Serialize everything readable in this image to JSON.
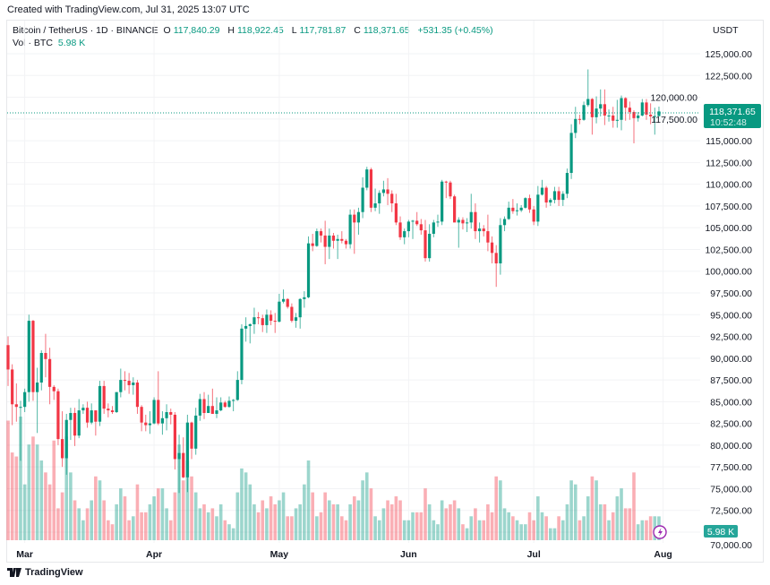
{
  "created_text": "Created with TradingView.com, Jul 31, 2025 13:07 UTC",
  "legend": {
    "symbol": "Bitcoin / TetherUS · 1D · BINANCE",
    "o_label": "O",
    "o": "117,840.29",
    "h_label": "H",
    "h": "118,922.45",
    "l_label": "L",
    "l": "117,781.87",
    "c_label": "C",
    "c": "118,371.65",
    "change": "+531.35 (+0.45%)",
    "vol_label": "Vol · BTC",
    "vol": "5.98 K"
  },
  "currency": "USDT",
  "last_price_badge": {
    "price": "118,371.65",
    "countdown": "10:52:48",
    "color": "#089981"
  },
  "volume_badge": "5.98 K",
  "brand": "TradingView",
  "colors": {
    "up": "#089981",
    "down": "#F23645"
  },
  "chart_data": {
    "type": "candlestick",
    "title": "Bitcoin / TetherUS · 1D · BINANCE",
    "ylim": [
      70000,
      125000
    ],
    "y_ticks": [
      "125,000.00",
      "122,500.00",
      "120,000.00",
      "117,500.00",
      "115,000.00",
      "112,500.00",
      "110,000.00",
      "107,500.00",
      "105,000.00",
      "102,500.00",
      "100,000.00",
      "97,500.00",
      "95,000.00",
      "92,500.00",
      "90,000.00",
      "87,500.00",
      "85,000.00",
      "82,500.00",
      "80,000.00",
      "77,500.00",
      "75,000.00",
      "72,500.00",
      "70,000.00"
    ],
    "x_ticks": [
      {
        "label": "Mar",
        "date": "03-01"
      },
      {
        "label": "Apr",
        "date": "04-01"
      },
      {
        "label": "May",
        "date": "05-01"
      },
      {
        "label": "Jun",
        "date": "06-01"
      },
      {
        "label": "Jul",
        "date": "07-01"
      },
      {
        "label": "Aug",
        "date": "08-01"
      }
    ],
    "grid": true,
    "columns": [
      "date",
      "open",
      "high",
      "low",
      "close",
      "volume_k"
    ],
    "candles": [
      [
        "02-25",
        91500,
        92500,
        86800,
        88700,
        30
      ],
      [
        "02-26",
        88700,
        89300,
        82300,
        84700,
        22
      ],
      [
        "02-27",
        84700,
        87100,
        82700,
        84400,
        21
      ],
      [
        "02-28",
        84400,
        85100,
        78200,
        84400,
        31
      ],
      [
        "03-01",
        84400,
        86500,
        83800,
        86100,
        14
      ],
      [
        "03-02",
        86100,
        95000,
        85000,
        94300,
        24
      ],
      [
        "03-03",
        94300,
        94400,
        85100,
        86100,
        26
      ],
      [
        "03-04",
        86100,
        88900,
        81400,
        87200,
        24
      ],
      [
        "03-05",
        87200,
        90900,
        86300,
        90600,
        20
      ],
      [
        "03-06",
        90600,
        92800,
        87800,
        89900,
        17
      ],
      [
        "03-07",
        89900,
        91200,
        84700,
        86700,
        14
      ],
      [
        "03-08",
        86700,
        86900,
        85200,
        86200,
        25
      ],
      [
        "03-09",
        86200,
        86500,
        80000,
        80700,
        8
      ],
      [
        "03-10",
        80700,
        83900,
        77500,
        78500,
        12
      ],
      [
        "03-11",
        78500,
        83600,
        76600,
        82900,
        26
      ],
      [
        "03-12",
        82900,
        84300,
        80600,
        83700,
        17
      ],
      [
        "03-13",
        83700,
        84300,
        79900,
        81100,
        10
      ],
      [
        "03-14",
        81100,
        85300,
        80800,
        84000,
        8
      ],
      [
        "03-15",
        84000,
        84700,
        83600,
        84300,
        5
      ],
      [
        "03-16",
        84300,
        85000,
        82000,
        82600,
        8
      ],
      [
        "03-17",
        82600,
        84800,
        82400,
        84000,
        10
      ],
      [
        "03-18",
        84000,
        84000,
        81100,
        82700,
        16
      ],
      [
        "03-19",
        82700,
        87400,
        82200,
        86800,
        15
      ],
      [
        "03-20",
        86800,
        87400,
        83600,
        84200,
        10
      ],
      [
        "03-21",
        84200,
        84800,
        83200,
        84000,
        5
      ],
      [
        "03-22",
        84000,
        84500,
        83600,
        83800,
        4
      ],
      [
        "03-23",
        83800,
        86100,
        83700,
        86100,
        9
      ],
      [
        "03-24",
        86100,
        88800,
        85500,
        87500,
        13
      ],
      [
        "03-25",
        87500,
        88500,
        86300,
        87400,
        11
      ],
      [
        "03-26",
        87400,
        88300,
        85900,
        86900,
        5
      ],
      [
        "03-27",
        86900,
        87800,
        85800,
        87200,
        6
      ],
      [
        "03-28",
        87200,
        87500,
        83600,
        84400,
        14
      ],
      [
        "03-29",
        84400,
        84600,
        81600,
        82600,
        7
      ],
      [
        "03-30",
        82600,
        83500,
        81600,
        82300,
        7
      ],
      [
        "03-31",
        82300,
        83900,
        81300,
        82500,
        9
      ],
      [
        "04-01",
        82500,
        85500,
        82400,
        85200,
        11
      ],
      [
        "04-02",
        85200,
        88500,
        82300,
        82500,
        13
      ],
      [
        "04-03",
        82500,
        83900,
        81200,
        83100,
        13
      ],
      [
        "04-04",
        83100,
        84700,
        81700,
        83800,
        8
      ],
      [
        "04-05",
        83800,
        84200,
        82400,
        83500,
        5
      ],
      [
        "04-06",
        83500,
        83800,
        77200,
        78400,
        12
      ],
      [
        "04-07",
        78400,
        81200,
        74500,
        79100,
        24
      ],
      [
        "04-08",
        79100,
        80900,
        76200,
        76300,
        15
      ],
      [
        "04-09",
        76300,
        83500,
        74600,
        82600,
        20
      ],
      [
        "04-10",
        82600,
        82700,
        78400,
        79600,
        16
      ],
      [
        "04-11",
        79600,
        84300,
        78900,
        83400,
        12
      ],
      [
        "04-12",
        83400,
        85900,
        82800,
        85300,
        8
      ],
      [
        "04-13",
        85300,
        86100,
        83000,
        83700,
        9
      ],
      [
        "04-14",
        83700,
        85800,
        83700,
        84500,
        7
      ],
      [
        "04-15",
        84500,
        86500,
        83600,
        83600,
        8
      ],
      [
        "04-16",
        83600,
        85500,
        83100,
        84000,
        6
      ],
      [
        "04-17",
        84000,
        85500,
        83900,
        84900,
        9
      ],
      [
        "04-18",
        84900,
        85100,
        84300,
        84400,
        5
      ],
      [
        "04-19",
        84400,
        85600,
        84300,
        85100,
        4
      ],
      [
        "04-20",
        85100,
        85300,
        83900,
        85200,
        3
      ],
      [
        "04-21",
        85200,
        88500,
        85100,
        87500,
        12
      ],
      [
        "04-22",
        87500,
        93900,
        87000,
        93400,
        18
      ],
      [
        "04-23",
        93400,
        94700,
        91900,
        93700,
        17
      ],
      [
        "04-24",
        93700,
        94000,
        91700,
        93900,
        14
      ],
      [
        "04-25",
        93900,
        95800,
        92800,
        94700,
        9
      ],
      [
        "04-26",
        94700,
        95300,
        93900,
        94600,
        7
      ],
      [
        "04-27",
        94600,
        95000,
        93000,
        93800,
        10
      ],
      [
        "04-28",
        93800,
        95600,
        92900,
        95000,
        8
      ],
      [
        "04-29",
        95000,
        95500,
        93800,
        94300,
        11
      ],
      [
        "04-30",
        94300,
        95200,
        92900,
        94200,
        9
      ],
      [
        "05-01",
        94200,
        97400,
        94100,
        96500,
        10
      ],
      [
        "05-02",
        96500,
        97900,
        96300,
        96800,
        12
      ],
      [
        "05-03",
        96800,
        96900,
        95700,
        95900,
        6
      ],
      [
        "05-04",
        95900,
        96300,
        94100,
        94300,
        6
      ],
      [
        "05-05",
        94300,
        95200,
        93500,
        94700,
        8
      ],
      [
        "05-06",
        94700,
        96900,
        93400,
        96800,
        9
      ],
      [
        "05-07",
        96800,
        97700,
        95800,
        97000,
        14
      ],
      [
        "05-08",
        97000,
        104000,
        96900,
        103200,
        20
      ],
      [
        "05-09",
        103200,
        104300,
        102300,
        102900,
        12
      ],
      [
        "05-10",
        102900,
        104900,
        102800,
        104600,
        6
      ],
      [
        "05-11",
        104600,
        104900,
        103300,
        104100,
        7
      ],
      [
        "05-12",
        104100,
        105800,
        100800,
        102800,
        12
      ],
      [
        "05-13",
        102800,
        104900,
        101400,
        104100,
        10
      ],
      [
        "05-14",
        104100,
        104400,
        102600,
        103500,
        9
      ],
      [
        "05-15",
        103500,
        104200,
        101400,
        103700,
        9
      ],
      [
        "05-16",
        103700,
        104600,
        103200,
        103500,
        6
      ],
      [
        "05-17",
        103500,
        103700,
        102600,
        103100,
        5
      ],
      [
        "05-18",
        103100,
        107100,
        102600,
        106500,
        9
      ],
      [
        "05-19",
        106500,
        107100,
        102000,
        105600,
        11
      ],
      [
        "05-20",
        105600,
        107300,
        104200,
        106800,
        10
      ],
      [
        "05-21",
        106800,
        110800,
        106100,
        109600,
        15
      ],
      [
        "05-22",
        109600,
        112000,
        109300,
        111700,
        17
      ],
      [
        "05-23",
        111700,
        111900,
        106800,
        107300,
        13
      ],
      [
        "05-24",
        107300,
        109500,
        106900,
        107800,
        6
      ],
      [
        "05-25",
        107800,
        109300,
        106600,
        109000,
        5
      ],
      [
        "05-26",
        109000,
        110400,
        108600,
        109400,
        8
      ],
      [
        "05-27",
        109400,
        110700,
        107600,
        108900,
        10
      ],
      [
        "05-28",
        108900,
        109300,
        106800,
        107800,
        9
      ],
      [
        "05-29",
        107800,
        108900,
        105300,
        105600,
        11
      ],
      [
        "05-30",
        105600,
        106300,
        103600,
        103900,
        10
      ],
      [
        "05-31",
        103900,
        104900,
        103100,
        104600,
        5
      ],
      [
        "06-01",
        104600,
        105900,
        103900,
        105700,
        5
      ],
      [
        "06-02",
        105700,
        105900,
        103700,
        105800,
        7
      ],
      [
        "06-03",
        105800,
        106800,
        105200,
        105400,
        7
      ],
      [
        "06-04",
        105400,
        106000,
        104200,
        104700,
        7
      ],
      [
        "06-05",
        104700,
        105900,
        101100,
        101500,
        13
      ],
      [
        "06-06",
        101500,
        105400,
        101100,
        104300,
        9
      ],
      [
        "06-07",
        104300,
        105900,
        103900,
        105600,
        5
      ],
      [
        "06-08",
        105600,
        106500,
        105100,
        105700,
        4
      ],
      [
        "06-09",
        105700,
        110500,
        105300,
        110300,
        10
      ],
      [
        "06-10",
        110300,
        110400,
        108400,
        110200,
        8
      ],
      [
        "06-11",
        110200,
        110400,
        108300,
        108600,
        9
      ],
      [
        "06-12",
        108600,
        108800,
        105700,
        105600,
        10
      ],
      [
        "06-13",
        105600,
        106200,
        102700,
        105900,
        8
      ],
      [
        "06-14",
        105900,
        106200,
        104800,
        105500,
        4
      ],
      [
        "06-15",
        105500,
        106100,
        104500,
        105600,
        3
      ],
      [
        "06-16",
        105600,
        108900,
        104900,
        106800,
        6
      ],
      [
        "06-17",
        106800,
        107800,
        103700,
        104600,
        8
      ],
      [
        "06-18",
        104600,
        105600,
        103300,
        104900,
        5
      ],
      [
        "06-19",
        104900,
        105300,
        104000,
        104600,
        5
      ],
      [
        "06-20",
        104600,
        106500,
        102300,
        103300,
        9
      ],
      [
        "06-21",
        103300,
        104000,
        100900,
        102100,
        7
      ],
      [
        "06-22",
        102100,
        103000,
        98200,
        100900,
        16
      ],
      [
        "06-23",
        100900,
        106100,
        99600,
        105300,
        15
      ],
      [
        "06-24",
        105300,
        106300,
        104600,
        106000,
        8
      ],
      [
        "06-25",
        106000,
        108000,
        105900,
        107300,
        7
      ],
      [
        "06-26",
        107300,
        108300,
        106600,
        106900,
        6
      ],
      [
        "06-27",
        106900,
        107800,
        106400,
        107000,
        5
      ],
      [
        "06-28",
        107000,
        107600,
        106800,
        107300,
        4
      ],
      [
        "06-29",
        107300,
        108500,
        107200,
        108400,
        4
      ],
      [
        "06-30",
        108400,
        108800,
        106700,
        107100,
        7
      ],
      [
        "07-01",
        107100,
        107500,
        105300,
        105700,
        5
      ],
      [
        "07-02",
        105700,
        109800,
        105200,
        108800,
        11
      ],
      [
        "07-03",
        108800,
        110500,
        108700,
        109600,
        7
      ],
      [
        "07-04",
        109600,
        109800,
        107300,
        107900,
        6
      ],
      [
        "07-05",
        107900,
        108400,
        107500,
        108200,
        3
      ],
      [
        "07-06",
        108200,
        109700,
        107800,
        109200,
        3
      ],
      [
        "07-07",
        109200,
        109700,
        107500,
        108200,
        6
      ],
      [
        "07-08",
        108200,
        109200,
        107500,
        108900,
        5
      ],
      [
        "07-09",
        108900,
        111800,
        108400,
        111300,
        9
      ],
      [
        "07-10",
        111300,
        116900,
        110600,
        115900,
        15
      ],
      [
        "07-11",
        115900,
        118900,
        115300,
        117500,
        14
      ],
      [
        "07-12",
        117500,
        118000,
        116900,
        117400,
        5
      ],
      [
        "07-13",
        117400,
        119500,
        117300,
        119100,
        6
      ],
      [
        "07-14",
        119100,
        123200,
        118900,
        119800,
        11
      ],
      [
        "07-15",
        119800,
        119900,
        115700,
        117700,
        16
      ],
      [
        "07-16",
        117700,
        120100,
        117000,
        118700,
        15
      ],
      [
        "07-17",
        118700,
        120900,
        117800,
        119200,
        9
      ],
      [
        "07-18",
        119200,
        120900,
        116800,
        117900,
        9
      ],
      [
        "07-19",
        117900,
        118600,
        117200,
        117900,
        5
      ],
      [
        "07-20",
        117900,
        118900,
        116500,
        117300,
        7
      ],
      [
        "07-21",
        117300,
        119700,
        116500,
        117400,
        11
      ],
      [
        "07-22",
        117400,
        120200,
        116200,
        119900,
        13
      ],
      [
        "07-23",
        119900,
        120000,
        117300,
        118800,
        8
      ],
      [
        "07-24",
        118800,
        119500,
        117400,
        118300,
        8
      ],
      [
        "07-25",
        118300,
        118500,
        114700,
        117600,
        17
      ],
      [
        "07-26",
        117600,
        118300,
        117200,
        117900,
        4
      ],
      [
        "07-27",
        117900,
        119800,
        117800,
        119400,
        5
      ],
      [
        "07-28",
        119400,
        119800,
        117400,
        118000,
        5
      ],
      [
        "07-29",
        118000,
        119300,
        116900,
        117800,
        6
      ],
      [
        "07-30",
        117800,
        118800,
        115700,
        117840.29,
        6
      ],
      [
        "07-31",
        117840.29,
        118922.45,
        117781.87,
        118371.65,
        5.98
      ]
    ]
  }
}
